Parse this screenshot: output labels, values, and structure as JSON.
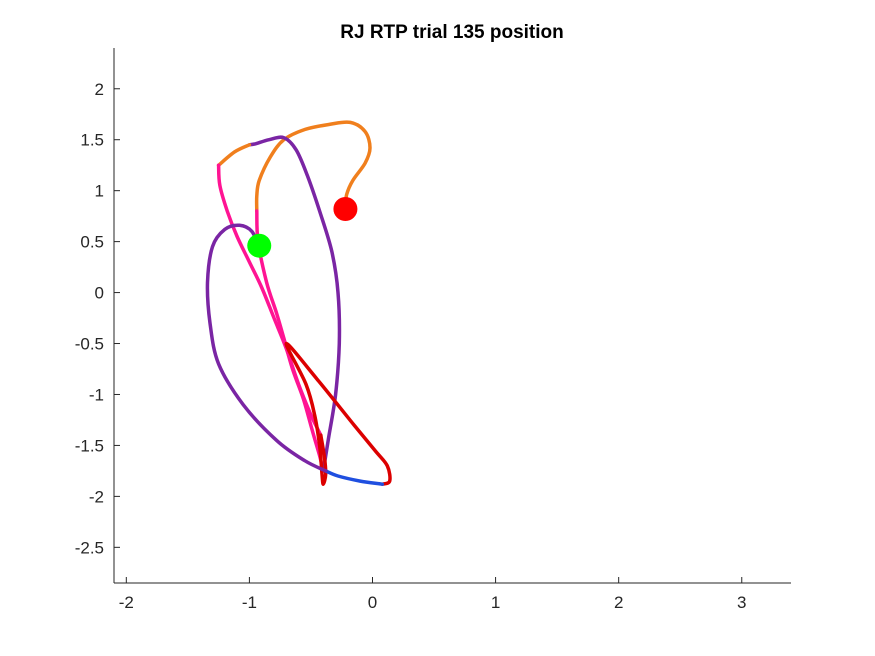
{
  "chart_data": {
    "type": "line",
    "title": "RJ  RTP trial 135 position",
    "xlabel": "",
    "ylabel": "",
    "xlim": [
      -2.1,
      3.4
    ],
    "ylim": [
      -2.85,
      2.4
    ],
    "x_ticks": [
      -2,
      -1,
      0,
      1,
      2,
      3
    ],
    "x_tick_labels": [
      "-2",
      "-1",
      "0",
      "1",
      "2",
      "3"
    ],
    "y_ticks": [
      2,
      1.5,
      1,
      0.5,
      0,
      -0.5,
      -1,
      -1.5,
      -2,
      -2.5
    ],
    "y_tick_labels": [
      "2",
      "1.5",
      "1",
      "0.5",
      "0",
      "-0.5",
      "-1",
      "-1.5",
      "-2",
      "-2.5"
    ],
    "grid": false,
    "legend": "none",
    "series": [
      {
        "color": "#f07f1d",
        "points": [
          [
            -0.22,
            0.82
          ],
          [
            -0.21,
            0.96
          ],
          [
            -0.16,
            1.1
          ],
          [
            -0.06,
            1.27
          ],
          [
            -0.02,
            1.42
          ],
          [
            -0.06,
            1.58
          ],
          [
            -0.18,
            1.67
          ],
          [
            -0.35,
            1.65
          ],
          [
            -0.55,
            1.6
          ],
          [
            -0.72,
            1.5
          ],
          [
            -0.83,
            1.33
          ],
          [
            -0.92,
            1.1
          ],
          [
            -0.94,
            0.95
          ],
          [
            -0.94,
            0.8
          ]
        ]
      },
      {
        "color": "#ff1493",
        "points": [
          [
            -0.94,
            0.8
          ],
          [
            -0.93,
            0.5
          ],
          [
            -0.86,
            0.1
          ],
          [
            -0.78,
            -0.2
          ],
          [
            -0.72,
            -0.45
          ],
          [
            -0.65,
            -0.75
          ],
          [
            -0.56,
            -1.05
          ],
          [
            -0.49,
            -1.35
          ],
          [
            -0.43,
            -1.6
          ],
          [
            -0.4,
            -1.75
          ]
        ]
      },
      {
        "color": "#7a25a4",
        "points": [
          [
            -0.4,
            -1.75
          ],
          [
            -0.36,
            -1.45
          ],
          [
            -0.3,
            -1.0
          ],
          [
            -0.27,
            -0.5
          ],
          [
            -0.28,
            0.0
          ],
          [
            -0.33,
            0.4
          ],
          [
            -0.43,
            0.8
          ],
          [
            -0.53,
            1.15
          ],
          [
            -0.62,
            1.4
          ],
          [
            -0.72,
            1.52
          ],
          [
            -0.84,
            1.5
          ],
          [
            -0.95,
            1.46
          ],
          [
            -1.0,
            1.45
          ]
        ]
      },
      {
        "color": "#f07f1d",
        "points": [
          [
            -1.0,
            1.45
          ],
          [
            -1.12,
            1.38
          ],
          [
            -1.25,
            1.25
          ]
        ]
      },
      {
        "color": "#ff1493",
        "points": [
          [
            -1.25,
            1.25
          ],
          [
            -1.24,
            1.05
          ],
          [
            -1.18,
            0.8
          ],
          [
            -1.1,
            0.55
          ],
          [
            -1.0,
            0.3
          ],
          [
            -0.9,
            0.05
          ],
          [
            -0.8,
            -0.25
          ],
          [
            -0.7,
            -0.55
          ],
          [
            -0.6,
            -0.9
          ],
          [
            -0.5,
            -1.2
          ],
          [
            -0.42,
            -1.4
          ]
        ]
      },
      {
        "color": "#dc0000",
        "points": [
          [
            -0.42,
            -1.4
          ],
          [
            -0.39,
            -1.62
          ],
          [
            -0.38,
            -1.78
          ],
          [
            -0.4,
            -1.88
          ],
          [
            -0.41,
            -1.78
          ],
          [
            -0.43,
            -1.5
          ],
          [
            -0.47,
            -1.2
          ],
          [
            -0.54,
            -0.9
          ],
          [
            -0.7,
            -0.5
          ],
          [
            -0.45,
            -0.85
          ],
          [
            -0.15,
            -1.3
          ],
          [
            0.02,
            -1.55
          ],
          [
            0.12,
            -1.7
          ],
          [
            0.14,
            -1.85
          ],
          [
            0.08,
            -1.88
          ]
        ]
      },
      {
        "color": "#1f4fe0",
        "points": [
          [
            0.08,
            -1.88
          ],
          [
            -0.1,
            -1.85
          ],
          [
            -0.28,
            -1.8
          ],
          [
            -0.38,
            -1.75
          ]
        ]
      },
      {
        "color": "#7a25a4",
        "points": [
          [
            -0.38,
            -1.75
          ],
          [
            -0.55,
            -1.65
          ],
          [
            -0.78,
            -1.45
          ],
          [
            -1.05,
            -1.1
          ],
          [
            -1.25,
            -0.7
          ],
          [
            -1.32,
            -0.3
          ],
          [
            -1.34,
            0.1
          ],
          [
            -1.3,
            0.45
          ],
          [
            -1.2,
            0.62
          ],
          [
            -1.08,
            0.66
          ],
          [
            -0.98,
            0.6
          ],
          [
            -0.93,
            0.46
          ]
        ]
      }
    ],
    "markers": [
      {
        "x": -0.22,
        "y": 0.82,
        "color": "#ff0000"
      },
      {
        "x": -0.92,
        "y": 0.46,
        "color": "#00ff00"
      }
    ]
  }
}
